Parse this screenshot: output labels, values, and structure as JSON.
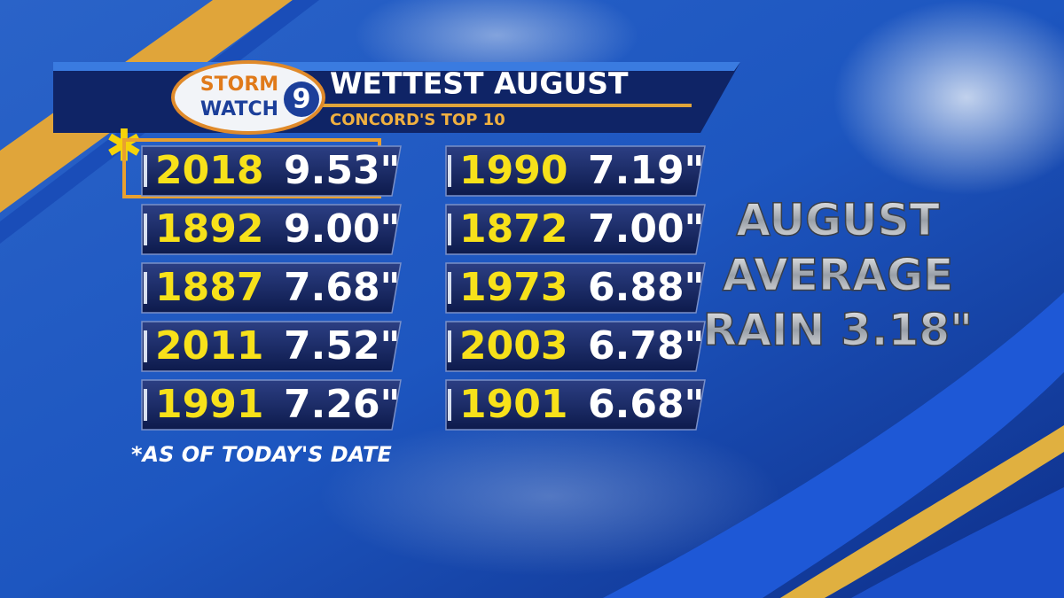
{
  "header": {
    "logo_top": "STORM",
    "logo_bottom": "WATCH",
    "logo_number": "9",
    "title": "WETTEST AUGUST",
    "subtitle": "CONCORD'S TOP 10"
  },
  "records": [
    {
      "year": "2018",
      "amount": "9.53\""
    },
    {
      "year": "1892",
      "amount": "9.00\""
    },
    {
      "year": "1887",
      "amount": "7.68\""
    },
    {
      "year": "2011",
      "amount": "7.52\""
    },
    {
      "year": "1991",
      "amount": "7.26\""
    },
    {
      "year": "1990",
      "amount": "7.19\""
    },
    {
      "year": "1872",
      "amount": "7.00\""
    },
    {
      "year": "1973",
      "amount": "6.88\""
    },
    {
      "year": "2003",
      "amount": "6.78\""
    },
    {
      "year": "1901",
      "amount": "6.68\""
    }
  ],
  "footnote": "*AS OF TODAY'S DATE",
  "average": {
    "lines": [
      "AUGUST",
      "AVERAGE",
      "RAIN 3.18\""
    ]
  }
}
